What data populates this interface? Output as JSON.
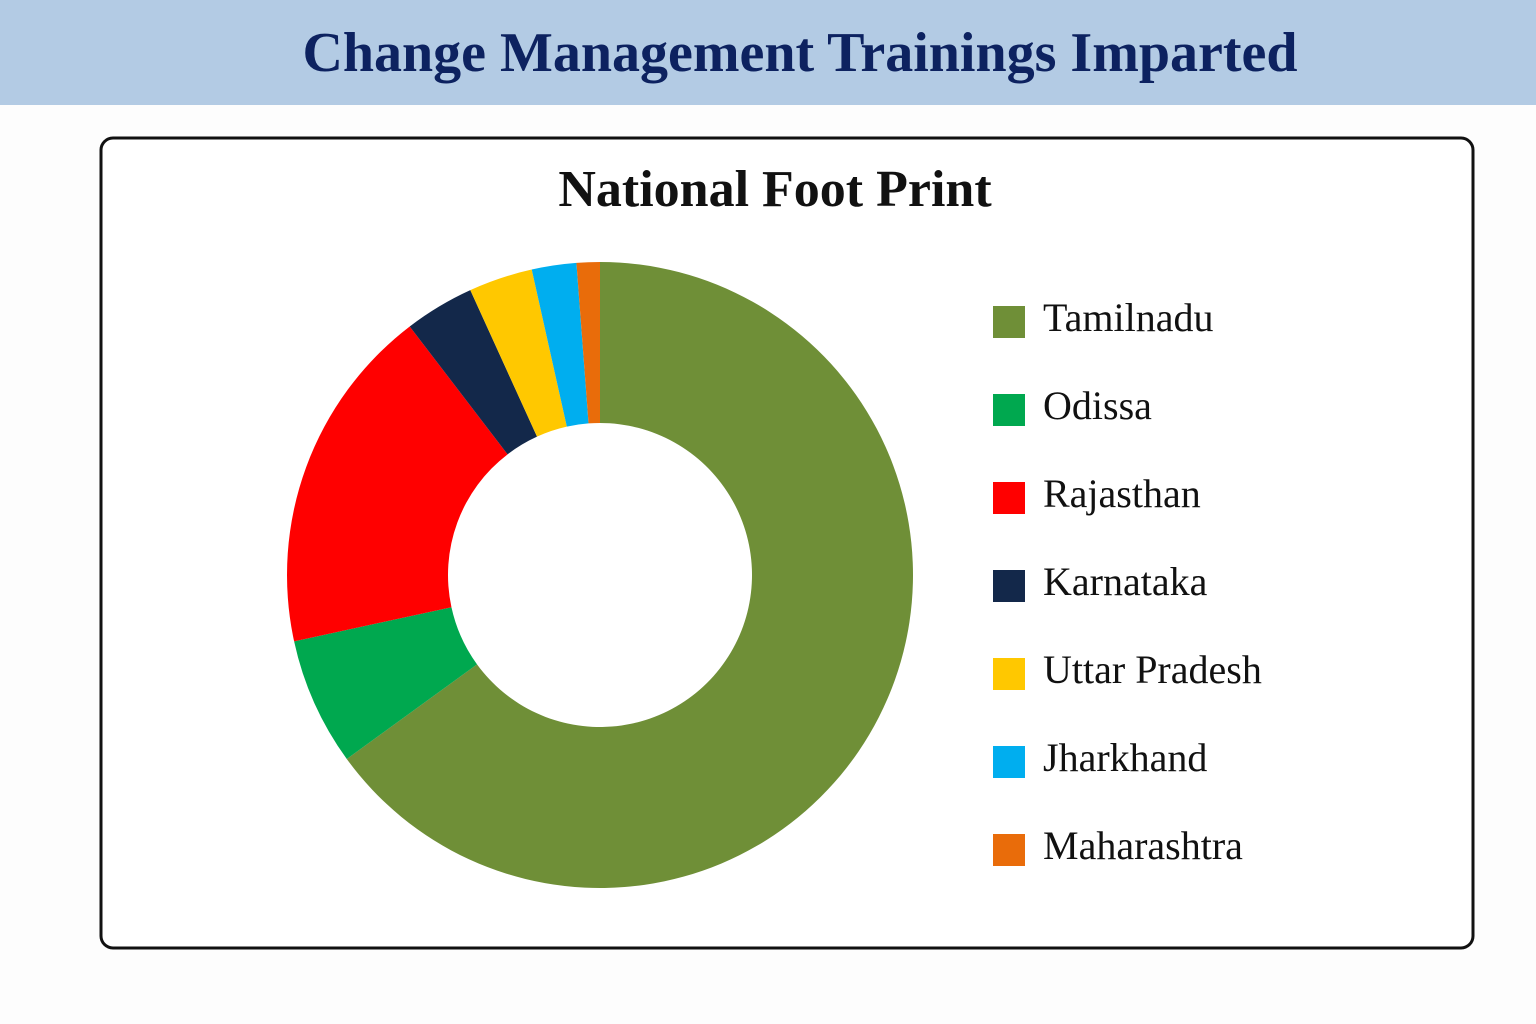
{
  "header": {
    "title": "Change Management Trainings Imparted"
  },
  "chart_data": {
    "type": "donut",
    "title": "National Foot Print",
    "categories": [
      "Tamilnadu",
      "Odissa",
      "Rajasthan",
      "Karnataka",
      "Uttar Pradesh",
      "Jharkhand",
      "Maharashtra"
    ],
    "values": [
      65,
      6.6,
      18,
      3.6,
      3.3,
      2.3,
      1.2
    ],
    "colors": [
      "#6f8f37",
      "#00a84f",
      "#ff0000",
      "#13284a",
      "#ffc800",
      "#00aeef",
      "#e96c0a"
    ],
    "legend": "right"
  }
}
